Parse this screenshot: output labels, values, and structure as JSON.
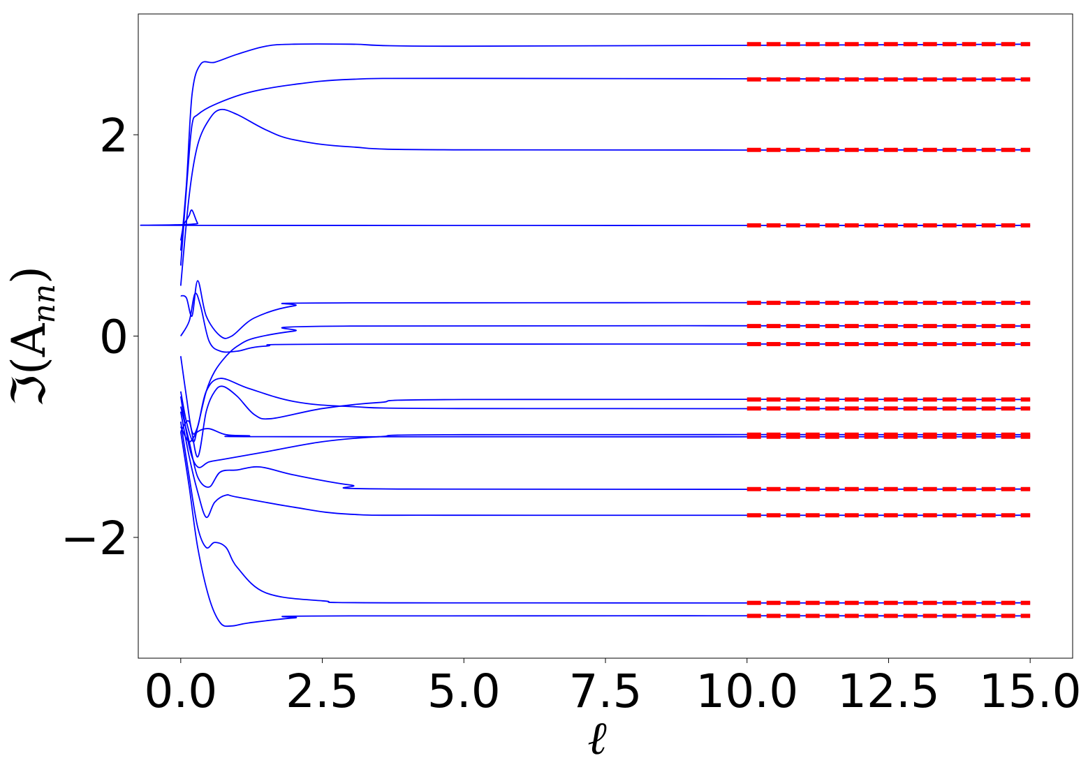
{
  "chart_data": {
    "type": "line",
    "title": "",
    "xlabel": "ℓ",
    "ylabel": "ℑ(A",
    "ylabel_sub": "nn",
    "ylabel_close": ")",
    "xlim": [
      -0.75,
      15.75
    ],
    "ylim": [
      -3.2,
      3.2
    ],
    "xticks": [
      0.0,
      2.5,
      5.0,
      7.5,
      10.0,
      12.5,
      15.0
    ],
    "xtick_labels": [
      "0.0",
      "2.5",
      "5.0",
      "7.5",
      "10.0",
      "12.5",
      "15.0"
    ],
    "yticks": [
      2,
      0,
      -2
    ],
    "ytick_labels": [
      "2",
      "0",
      "−2"
    ],
    "grid": false,
    "colors": {
      "flow": "#0000ff",
      "asymptote": "#ff0000",
      "axes": "#000000"
    },
    "series": [
      {
        "style": "solid-blue",
        "x": [
          0,
          0.1,
          0.2,
          0.35,
          0.6,
          1.0,
          1.5,
          2.0,
          3.0,
          5.0,
          15.0
        ],
        "y": [
          0.85,
          1.5,
          2.4,
          2.7,
          2.72,
          2.8,
          2.88,
          2.9,
          2.9,
          2.88,
          2.9
        ]
      },
      {
        "style": "solid-blue",
        "x": [
          0,
          0.12,
          0.2,
          0.3,
          0.6,
          1.2,
          2.0,
          3.0,
          5.0,
          15.0
        ],
        "y": [
          0.7,
          1.6,
          2.1,
          2.2,
          2.3,
          2.42,
          2.5,
          2.55,
          2.56,
          2.55
        ]
      },
      {
        "style": "solid-blue",
        "x": [
          0,
          0.15,
          0.3,
          0.5,
          0.7,
          1.0,
          1.5,
          2.0,
          3.0,
          5.0,
          15.0
        ],
        "y": [
          0.5,
          1.4,
          1.9,
          2.15,
          2.25,
          2.2,
          2.05,
          1.95,
          1.88,
          1.85,
          1.85
        ]
      },
      {
        "style": "solid-blue",
        "x": [
          0,
          0.05,
          0.1,
          0.15,
          0.2,
          0.3,
          0.4,
          15.0
        ],
        "y": [
          0.95,
          1.1,
          1.15,
          1.2,
          1.25,
          1.12,
          1.1,
          1.1
        ]
      },
      {
        "style": "solid-blue",
        "x": [
          0,
          0.1,
          0.2,
          0.3,
          0.45,
          0.7,
          0.9,
          1.3,
          2.0,
          3.0,
          15.0
        ],
        "y": [
          0.4,
          0.38,
          0.2,
          0.55,
          0.2,
          0.0,
          0.0,
          0.18,
          0.3,
          0.33,
          0.33
        ]
      },
      {
        "style": "solid-blue",
        "x": [
          0,
          0.1,
          0.22,
          0.3,
          0.45,
          0.6,
          0.8,
          1.0,
          1.3,
          2.0,
          3.0,
          15.0
        ],
        "y": [
          -0.55,
          -0.85,
          -1.05,
          -0.9,
          -0.55,
          -0.35,
          -0.2,
          -0.1,
          -0.02,
          0.05,
          0.1,
          0.1
        ]
      },
      {
        "style": "solid-blue",
        "x": [
          0,
          0.15,
          0.25,
          0.35,
          0.5,
          0.7,
          1.0,
          1.5,
          3.0,
          15.0
        ],
        "y": [
          0.0,
          0.15,
          0.42,
          0.3,
          -0.05,
          -0.15,
          -0.15,
          -0.1,
          -0.08,
          -0.08
        ]
      },
      {
        "style": "solid-blue",
        "x": [
          0,
          0.1,
          0.2,
          0.3,
          0.45,
          0.7,
          1.2,
          2.0,
          3.0,
          5.0,
          15.0
        ],
        "y": [
          -0.2,
          -0.6,
          -0.95,
          -0.9,
          -0.55,
          -0.42,
          -0.52,
          -0.65,
          -0.7,
          -0.72,
          -0.72
        ]
      },
      {
        "style": "solid-blue",
        "x": [
          0,
          0.15,
          0.3,
          0.45,
          0.6,
          0.75,
          1.0,
          1.3,
          1.6,
          2.5,
          3.5,
          5.0,
          15.0
        ],
        "y": [
          -0.95,
          -0.85,
          -1.2,
          -0.75,
          -0.55,
          -0.5,
          -0.6,
          -0.78,
          -0.82,
          -0.72,
          -0.66,
          -0.63,
          -0.63
        ]
      },
      {
        "style": "solid-blue",
        "x": [
          0,
          0.15,
          0.3,
          0.5,
          0.8,
          1.2,
          2.0,
          15.0
        ],
        "y": [
          -0.9,
          -1.05,
          -0.95,
          -0.92,
          -0.98,
          -0.99,
          -1.0,
          -1.0
        ]
      },
      {
        "style": "solid-blue",
        "x": [
          0,
          0.15,
          0.3,
          0.5,
          0.8,
          1.5,
          2.5,
          3.5,
          5.0,
          15.0
        ],
        "y": [
          -0.6,
          -1.1,
          -1.3,
          -1.25,
          -1.22,
          -1.15,
          -1.05,
          -1.0,
          -0.98,
          -0.98
        ]
      },
      {
        "style": "solid-blue",
        "x": [
          0,
          0.15,
          0.3,
          0.5,
          0.7,
          1.0,
          1.4,
          2.0,
          3.0,
          4.0,
          15.0
        ],
        "y": [
          -0.7,
          -1.05,
          -1.4,
          -1.5,
          -1.35,
          -1.33,
          -1.3,
          -1.38,
          -1.48,
          -1.52,
          -1.52
        ]
      },
      {
        "style": "solid-blue",
        "x": [
          0,
          0.15,
          0.3,
          0.45,
          0.6,
          0.8,
          1.0,
          2.0,
          3.0,
          5.0,
          15.0
        ],
        "y": [
          -0.75,
          -1.2,
          -1.55,
          -1.8,
          -1.65,
          -1.58,
          -1.6,
          -1.7,
          -1.77,
          -1.78,
          -1.78
        ]
      },
      {
        "style": "solid-blue",
        "x": [
          0,
          0.15,
          0.3,
          0.45,
          0.6,
          0.8,
          1.0,
          1.5,
          2.5,
          4.0,
          15.0
        ],
        "y": [
          -0.85,
          -1.4,
          -1.9,
          -2.1,
          -2.05,
          -2.1,
          -2.3,
          -2.55,
          -2.63,
          -2.65,
          -2.65
        ]
      },
      {
        "style": "solid-blue",
        "x": [
          0,
          0.15,
          0.3,
          0.5,
          0.7,
          0.9,
          1.2,
          2.0,
          3.0,
          15.0
        ],
        "y": [
          -0.95,
          -1.5,
          -2.1,
          -2.6,
          -2.85,
          -2.88,
          -2.85,
          -2.8,
          -2.78,
          -2.78
        ]
      },
      {
        "style": "dashed-red",
        "x": [
          10.0,
          15.0
        ],
        "y": [
          2.9,
          2.9
        ]
      },
      {
        "style": "dashed-red",
        "x": [
          10.0,
          15.0
        ],
        "y": [
          2.55,
          2.55
        ]
      },
      {
        "style": "dashed-red",
        "x": [
          10.0,
          15.0
        ],
        "y": [
          1.85,
          1.85
        ]
      },
      {
        "style": "dashed-red",
        "x": [
          10.0,
          15.0
        ],
        "y": [
          1.1,
          1.1
        ]
      },
      {
        "style": "dashed-red",
        "x": [
          10.0,
          15.0
        ],
        "y": [
          0.33,
          0.33
        ]
      },
      {
        "style": "dashed-red",
        "x": [
          10.0,
          15.0
        ],
        "y": [
          0.1,
          0.1
        ]
      },
      {
        "style": "dashed-red",
        "x": [
          10.0,
          15.0
        ],
        "y": [
          -0.08,
          -0.08
        ]
      },
      {
        "style": "dashed-red",
        "x": [
          10.0,
          15.0
        ],
        "y": [
          -0.63,
          -0.63
        ]
      },
      {
        "style": "dashed-red",
        "x": [
          10.0,
          15.0
        ],
        "y": [
          -0.72,
          -0.72
        ]
      },
      {
        "style": "dashed-red",
        "x": [
          10.0,
          15.0
        ],
        "y": [
          -0.98,
          -0.98
        ]
      },
      {
        "style": "dashed-red",
        "x": [
          10.0,
          15.0
        ],
        "y": [
          -1.0,
          -1.0
        ]
      },
      {
        "style": "dashed-red",
        "x": [
          10.0,
          15.0
        ],
        "y": [
          -1.52,
          -1.52
        ]
      },
      {
        "style": "dashed-red",
        "x": [
          10.0,
          15.0
        ],
        "y": [
          -1.78,
          -1.78
        ]
      },
      {
        "style": "dashed-red",
        "x": [
          10.0,
          15.0
        ],
        "y": [
          -2.65,
          -2.65
        ]
      },
      {
        "style": "dashed-red",
        "x": [
          10.0,
          15.0
        ],
        "y": [
          -2.78,
          -2.78
        ]
      }
    ]
  }
}
